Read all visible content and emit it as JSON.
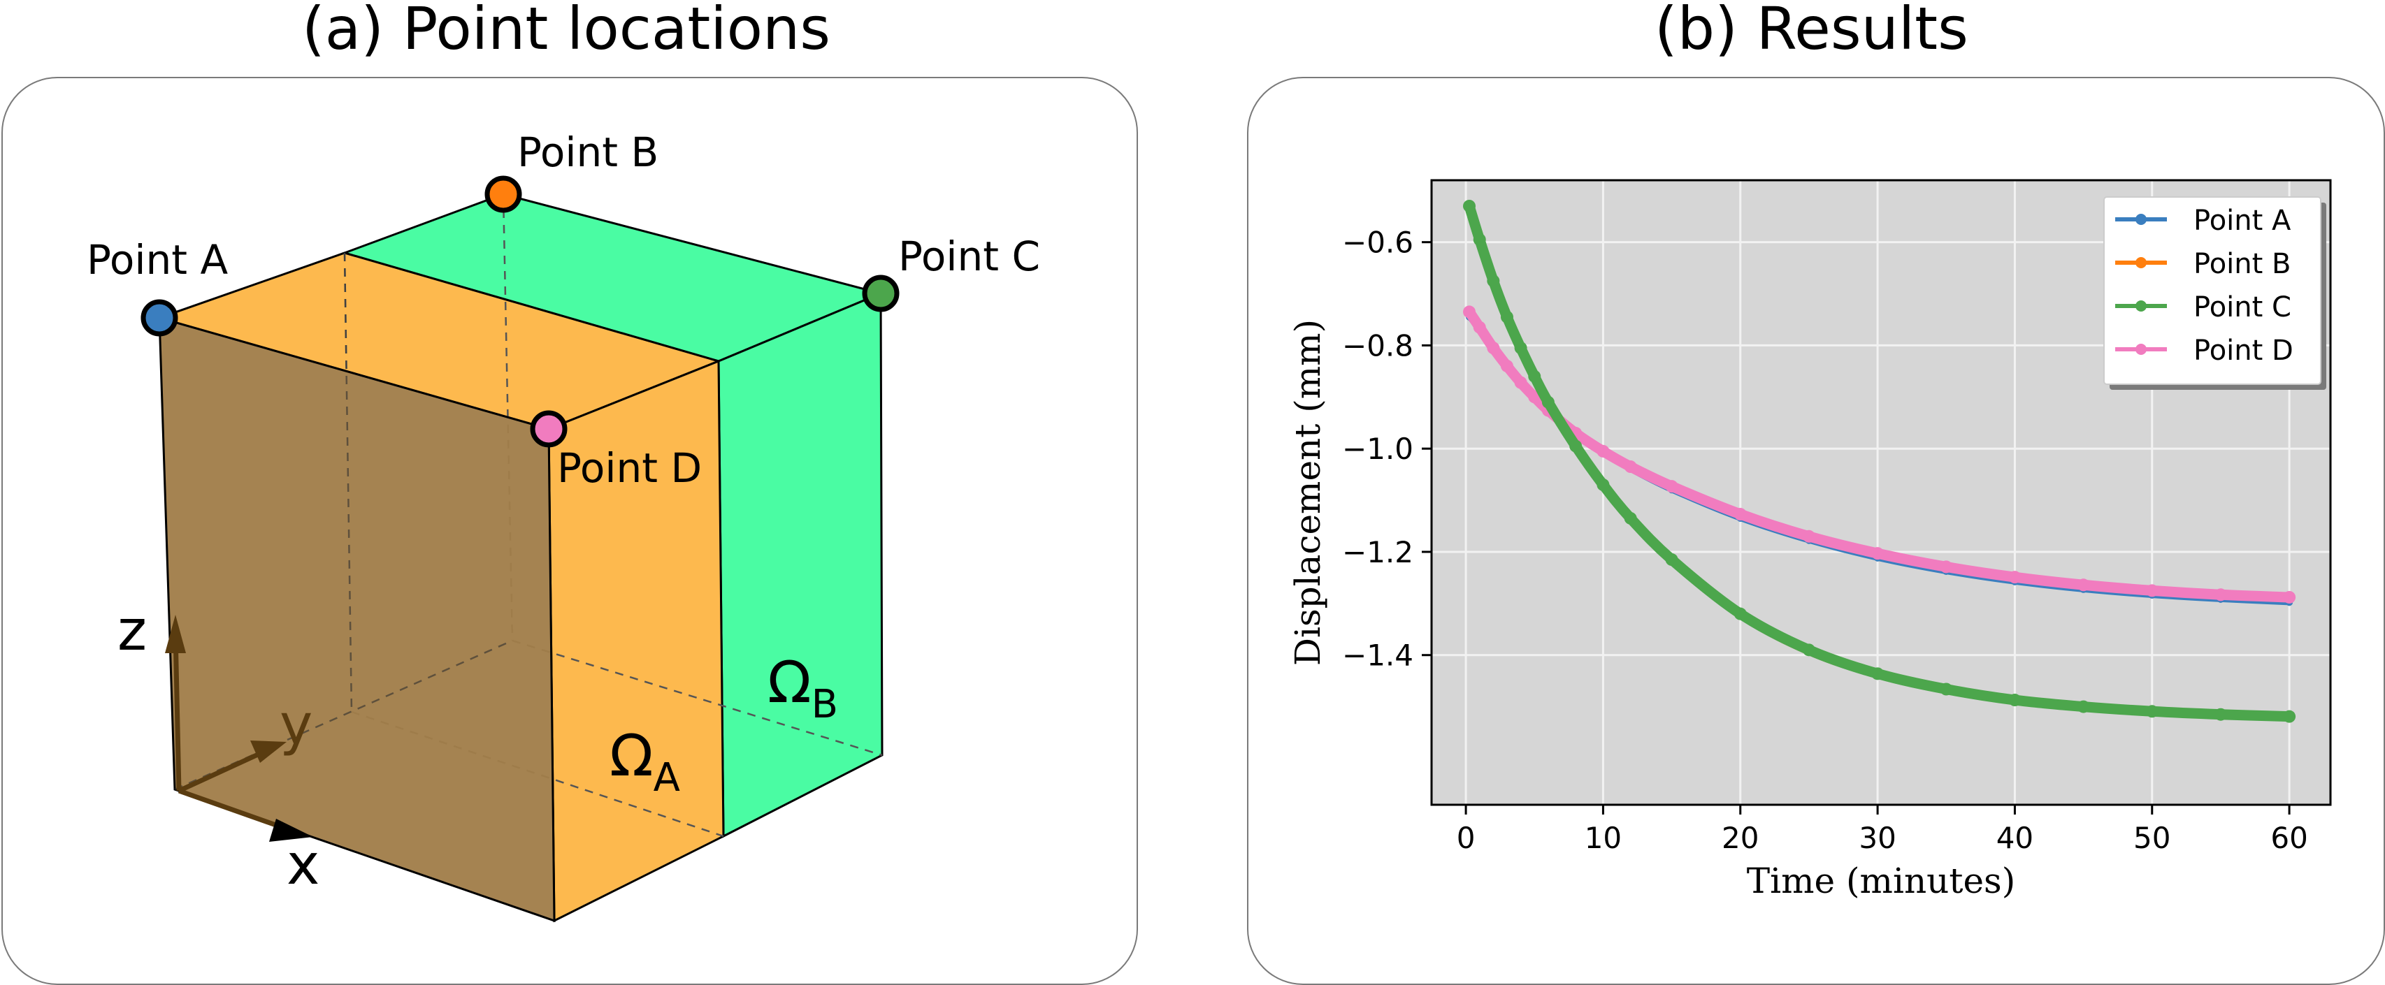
{
  "panels": {
    "left_title": "(a) Point locations",
    "right_title": "(b) Results"
  },
  "diagram": {
    "points": [
      {
        "label": "Point A",
        "color": "#3a7ebf"
      },
      {
        "label": "Point B",
        "color": "#ff7f0e"
      },
      {
        "label": "Point C",
        "color": "#4ca64c"
      },
      {
        "label": "Point D",
        "color": "#f17cbf"
      }
    ],
    "axes": {
      "z": "z",
      "y": "y",
      "x": "x"
    },
    "regions": {
      "a": {
        "symbol": "Ω",
        "sub": "A",
        "color": "#fdb94e"
      },
      "b": {
        "symbol": "Ω",
        "sub": "B",
        "color": "#4afca3"
      }
    },
    "front_face_color": "#a17e4a"
  },
  "chart_data": {
    "type": "line",
    "title": "",
    "xlabel": "Time (minutes)",
    "ylabel": "Displacement (mm)",
    "xlim": [
      -2.5,
      63
    ],
    "ylim": [
      -1.69,
      -0.48
    ],
    "xticks": [
      0,
      10,
      20,
      30,
      40,
      50,
      60
    ],
    "yticks": [
      -0.6,
      -0.8,
      -1.0,
      -1.2,
      -1.4
    ],
    "xtick_labels": [
      "0",
      "10",
      "20",
      "30",
      "40",
      "50",
      "60"
    ],
    "ytick_labels": [
      "−0.6",
      "−0.8",
      "−1.0",
      "−1.2",
      "−1.4"
    ],
    "grid": true,
    "background": "#d6d6d6",
    "legend_position": "top-right",
    "x": [
      0.25,
      1,
      2,
      3,
      4,
      5,
      6,
      8,
      10,
      12,
      15,
      20,
      25,
      30,
      35,
      40,
      45,
      50,
      55,
      60
    ],
    "series": [
      {
        "name": "Point A",
        "color": "#3a7ebf",
        "values": [
          -0.745,
          -0.77,
          -0.81,
          -0.845,
          -0.875,
          -0.905,
          -0.93,
          -0.975,
          -1.01,
          -1.04,
          -1.08,
          -1.135,
          -1.178,
          -1.212,
          -1.238,
          -1.258,
          -1.273,
          -1.284,
          -1.292,
          -1.298
        ]
      },
      {
        "name": "Point B",
        "color": "#ff7f0e",
        "values": [
          -0.535,
          -0.6,
          -0.68,
          -0.75,
          -0.81,
          -0.865,
          -0.915,
          -1.0,
          -1.075,
          -1.14,
          -1.22,
          -1.325,
          -1.395,
          -1.44,
          -1.47,
          -1.49,
          -1.503,
          -1.512,
          -1.518,
          -1.522
        ]
      },
      {
        "name": "Point C",
        "color": "#4ca64c",
        "values": [
          -0.53,
          -0.595,
          -0.675,
          -0.745,
          -0.805,
          -0.86,
          -0.91,
          -0.995,
          -1.07,
          -1.135,
          -1.215,
          -1.32,
          -1.39,
          -1.436,
          -1.466,
          -1.487,
          -1.5,
          -1.509,
          -1.515,
          -1.519
        ]
      },
      {
        "name": "Point D",
        "color": "#f17cbf",
        "values": [
          -0.735,
          -0.765,
          -0.805,
          -0.84,
          -0.872,
          -0.9,
          -0.926,
          -0.97,
          -1.005,
          -1.035,
          -1.073,
          -1.127,
          -1.17,
          -1.203,
          -1.229,
          -1.249,
          -1.264,
          -1.275,
          -1.283,
          -1.288
        ]
      }
    ]
  }
}
